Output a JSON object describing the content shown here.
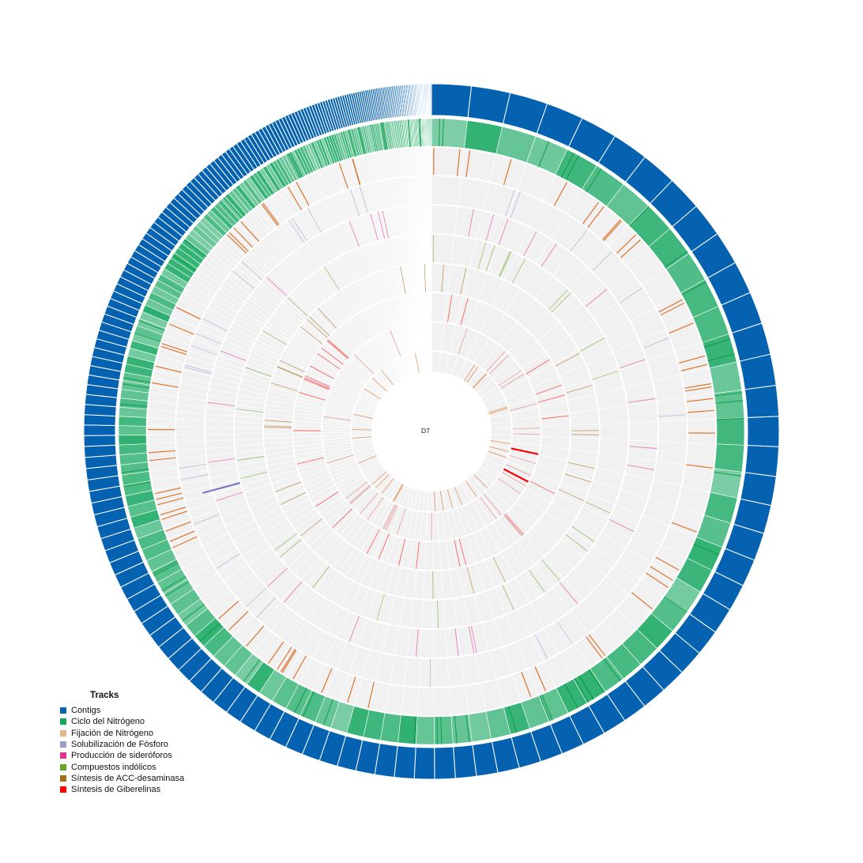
{
  "center_label": "D7",
  "legend": {
    "title": "Tracks",
    "items": [
      {
        "label": "Contigs",
        "color": "#0562b0"
      },
      {
        "label": "Ciclo del Nitrógeno",
        "color": "#13a65e"
      },
      {
        "label": "Fijación de Nitrógeno",
        "color": "#e6b48a"
      },
      {
        "label": "Solubilización de Fósforo",
        "color": "#9b9ec8"
      },
      {
        "label": "Producción de sideróforos",
        "color": "#e0338b"
      },
      {
        "label": "Compuestos indólicos",
        "color": "#66a823"
      },
      {
        "label": "Síntesis de ACC-desaminasa",
        "color": "#a36c17"
      },
      {
        "label": "Síntesis de Giberelinas",
        "color": "#ff0000"
      }
    ]
  },
  "colors": {
    "background_track": "#f1f1f1",
    "contig": "#0562b0",
    "nitrogen_cycle": "#13a65e",
    "fixation_line": "#d9661a"
  }
}
